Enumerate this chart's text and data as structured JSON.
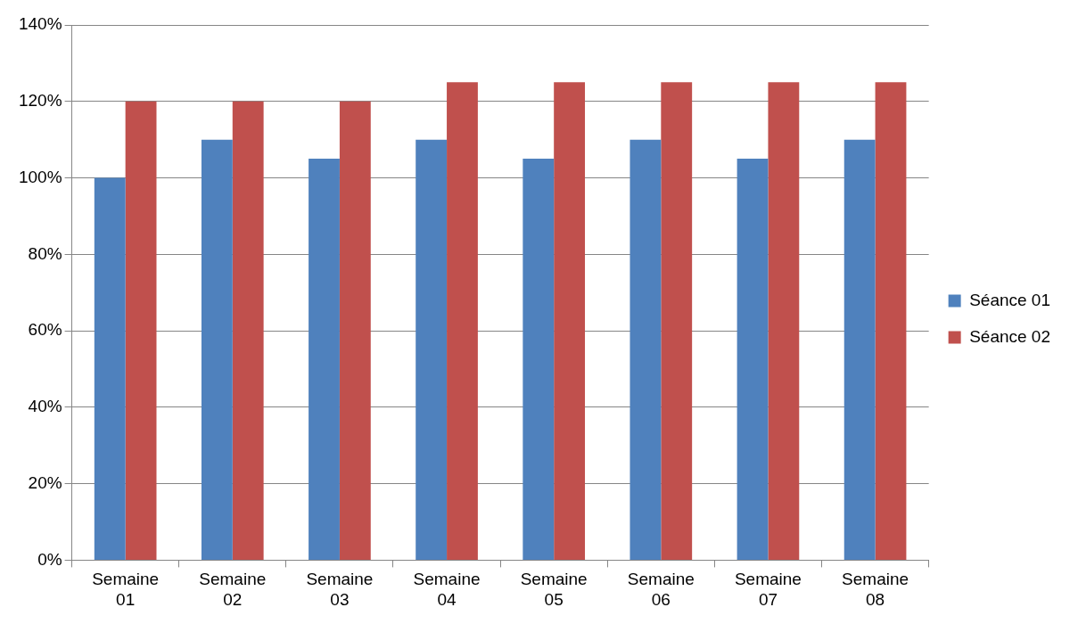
{
  "chart_data": {
    "type": "bar",
    "categories": [
      "Semaine 01",
      "Semaine 02",
      "Semaine 03",
      "Semaine 04",
      "Semaine 05",
      "Semaine 06",
      "Semaine 07",
      "Semaine 08"
    ],
    "series": [
      {
        "name": "Séance 01",
        "color": "#4f81bd",
        "values": [
          100,
          110,
          105,
          110,
          105,
          110,
          105,
          110
        ]
      },
      {
        "name": "Séance 02",
        "color": "#c0504d",
        "values": [
          120,
          120,
          120,
          125,
          125,
          125,
          125,
          125
        ]
      }
    ],
    "ylim": [
      0,
      140
    ],
    "yticks": [
      {
        "value": 0,
        "label": "0%"
      },
      {
        "value": 20,
        "label": "20%"
      },
      {
        "value": 40,
        "label": "40%"
      },
      {
        "value": 60,
        "label": "60%"
      },
      {
        "value": 80,
        "label": "80%"
      },
      {
        "value": 100,
        "label": "100%"
      },
      {
        "value": 120,
        "label": "120%"
      },
      {
        "value": 140,
        "label": "140%"
      }
    ],
    "grid": "y",
    "legend": "right"
  }
}
